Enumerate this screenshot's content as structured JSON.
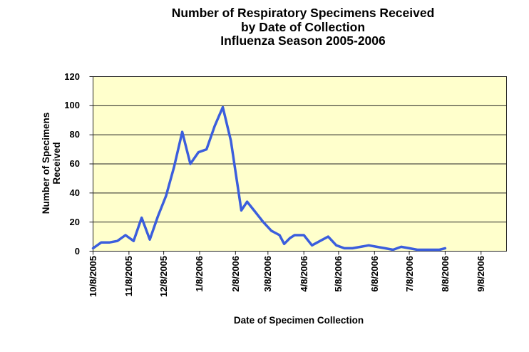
{
  "chart_data": {
    "type": "line",
    "title_lines": [
      "Number of Respiratory Specimens Received",
      "by Date of Collection",
      "Influenza Season 2005-2006"
    ],
    "ylabel_lines": [
      "Number of Specimens",
      "Received"
    ],
    "xlabel": "Date of Specimen Collection",
    "ylim": [
      0,
      120
    ],
    "y_ticks": [
      0,
      20,
      40,
      60,
      80,
      100,
      120
    ],
    "x_tick_labels": [
      "10/8/2005",
      "11/8/2005",
      "12/8/2005",
      "1/8/2006",
      "2/8/2006",
      "3/8/2006",
      "4/8/2006",
      "5/8/2006",
      "6/8/2006",
      "7/8/2006",
      "8/8/2006",
      "9/8/2006"
    ],
    "x_range": [
      "10/8/2005",
      "9/30/2006"
    ],
    "grid": "horizontal",
    "legend": "none",
    "plot_bg": "#ffffcc",
    "line_color": "#3b5edd",
    "axis_color": "#222222",
    "points": [
      [
        "10/8/2005",
        2
      ],
      [
        "10/15/2005",
        6
      ],
      [
        "10/22/2005",
        6
      ],
      [
        "10/29/2005",
        7
      ],
      [
        "11/5/2005",
        11
      ],
      [
        "11/12/2005",
        7
      ],
      [
        "11/19/2005",
        23
      ],
      [
        "11/26/2005",
        8
      ],
      [
        "12/3/2005",
        24
      ],
      [
        "12/10/2005",
        38
      ],
      [
        "12/17/2005",
        58
      ],
      [
        "12/24/2005",
        82
      ],
      [
        "12/31/2005",
        60
      ],
      [
        "1/7/2006",
        68
      ],
      [
        "1/14/2006",
        70
      ],
      [
        "1/21/2006",
        86
      ],
      [
        "1/28/2006",
        99
      ],
      [
        "2/4/2006",
        76
      ],
      [
        "2/13/2006",
        28
      ],
      [
        "2/18/2006",
        34
      ],
      [
        "2/25/2006",
        27
      ],
      [
        "3/4/2006",
        20
      ],
      [
        "3/11/2006",
        14
      ],
      [
        "3/18/2006",
        11
      ],
      [
        "3/22/2006",
        5
      ],
      [
        "3/27/2006",
        9
      ],
      [
        "3/31/2006",
        11
      ],
      [
        "4/8/2006",
        11
      ],
      [
        "4/15/2006",
        4
      ],
      [
        "4/22/2006",
        7
      ],
      [
        "4/29/2006",
        10
      ],
      [
        "5/6/2006",
        4
      ],
      [
        "5/13/2006",
        2
      ],
      [
        "5/20/2006",
        2
      ],
      [
        "5/27/2006",
        3
      ],
      [
        "6/3/2006",
        4
      ],
      [
        "6/10/2006",
        3
      ],
      [
        "6/17/2006",
        2
      ],
      [
        "6/24/2006",
        1
      ],
      [
        "7/1/2006",
        3
      ],
      [
        "7/8/2006",
        2
      ],
      [
        "7/15/2006",
        1
      ],
      [
        "7/22/2006",
        1
      ],
      [
        "7/29/2006",
        1
      ],
      [
        "8/3/2006",
        1
      ],
      [
        "8/8/2006",
        2
      ]
    ]
  }
}
